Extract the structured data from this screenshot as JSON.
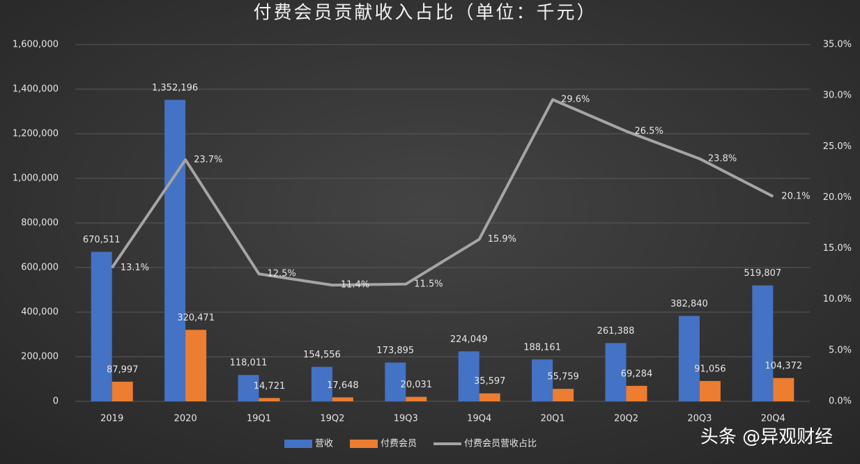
{
  "chart_data": {
    "type": "bar-line",
    "title": "付费会员贡献收入占比（单位：千元）",
    "categories": [
      "2019",
      "2020",
      "19Q1",
      "19Q2",
      "19Q3",
      "19Q4",
      "20Q1",
      "20Q2",
      "20Q3",
      "20Q4"
    ],
    "series": [
      {
        "name": "营收",
        "type": "bar",
        "color": "#4472c4",
        "values": [
          670511,
          1352196,
          118011,
          154556,
          173895,
          224049,
          188161,
          261388,
          382840,
          519807
        ],
        "value_labels": [
          "670,511",
          "1,352,196",
          "118,011",
          "154,556",
          "173,895",
          "224,049",
          "188,161",
          "261,388",
          "382,840",
          "519,807"
        ]
      },
      {
        "name": "付费会员",
        "type": "bar",
        "color": "#ed7d31",
        "values": [
          87997,
          320471,
          14721,
          17648,
          20031,
          35597,
          55759,
          69284,
          91056,
          104372
        ],
        "value_labels": [
          "87,997",
          "320,471",
          "14,721",
          "17,648",
          "20,031",
          "35,597",
          "55,759",
          "69,284",
          "91,056",
          "104,372"
        ]
      },
      {
        "name": "付费会员营收占比",
        "type": "line",
        "axis": "y2",
        "color": "#a5a5a5",
        "values": [
          13.1,
          23.7,
          12.5,
          11.4,
          11.5,
          15.9,
          29.6,
          26.5,
          23.8,
          20.1
        ],
        "value_labels": [
          "13.1%",
          "23.7%",
          "12.5%",
          "11.4%",
          "11.5%",
          "15.9%",
          "29.6%",
          "26.5%",
          "23.8%",
          "20.1%"
        ]
      }
    ],
    "ylim": [
      0,
      1600000
    ],
    "yticks": [
      0,
      {
        "value": 200000,
        "label": "200,000"
      },
      {
        "value": 400000,
        "label": "400,000"
      },
      {
        "value": 600000,
        "label": "600,000"
      },
      {
        "value": 800000,
        "label": "800,000"
      },
      {
        "value": 1000000,
        "label": "1,000,000"
      },
      {
        "value": 1200000,
        "label": "1,200,000"
      },
      {
        "value": 1400000,
        "label": "1,400,000"
      },
      {
        "value": 1600000,
        "label": "1,600,000"
      }
    ],
    "y2lim": [
      0,
      35
    ],
    "y2ticks": [
      {
        "value": 0,
        "label": "0.0%"
      },
      {
        "value": 5,
        "label": "5.0%"
      },
      {
        "value": 10,
        "label": "10.0%"
      },
      {
        "value": 15,
        "label": "15.0%"
      },
      {
        "value": 20,
        "label": "20.0%"
      },
      {
        "value": 25,
        "label": "25.0%"
      },
      {
        "value": 30,
        "label": "30.0%"
      },
      {
        "value": 35,
        "label": "35.0%"
      }
    ],
    "grid": true,
    "legend": "bottom"
  },
  "watermark": "头条 @异观财经"
}
